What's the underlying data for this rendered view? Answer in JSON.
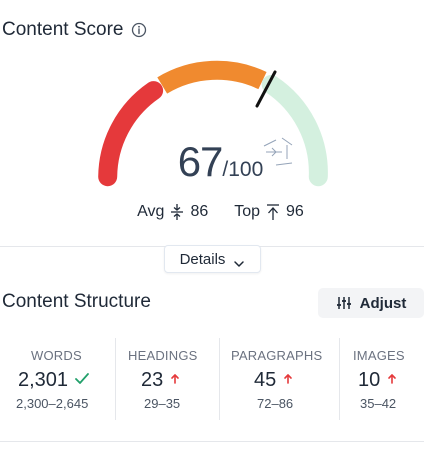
{
  "header": {
    "title": "Content Score",
    "info_icon": "info-circle-icon"
  },
  "score": {
    "value": "67",
    "out_of": "/100",
    "max": 100,
    "score_value": 67,
    "segments": [
      {
        "color": "#e5393b",
        "name": "low"
      },
      {
        "color": "#f08a2f",
        "name": "mid"
      },
      {
        "color": "#d4f0df",
        "name": "high"
      }
    ]
  },
  "benchmarks": {
    "avg_label": "Avg",
    "avg_value": "86",
    "avg_icon": "compress-vertical-icon",
    "top_label": "Top",
    "top_value": "96",
    "top_icon": "arrow-up-to-line-icon"
  },
  "details_button": {
    "label": "Details",
    "icon": "chevron-down-icon"
  },
  "structure": {
    "title": "Content Structure",
    "adjust_label": "Adjust",
    "adjust_icon": "sliders-icon",
    "stats": [
      {
        "label": "WORDS",
        "value": "2,301",
        "status": "check",
        "range": "2,300–2,645"
      },
      {
        "label": "HEADINGS",
        "value": "23",
        "status": "up",
        "range": "29–35"
      },
      {
        "label": "PARAGRAPHS",
        "value": "45",
        "status": "up",
        "range": "72–86"
      },
      {
        "label": "IMAGES",
        "value": "10",
        "status": "up",
        "range": "35–42"
      }
    ]
  },
  "colors": {
    "check": "#22a06b",
    "up": "#e5393b",
    "text": "#1f2937"
  }
}
